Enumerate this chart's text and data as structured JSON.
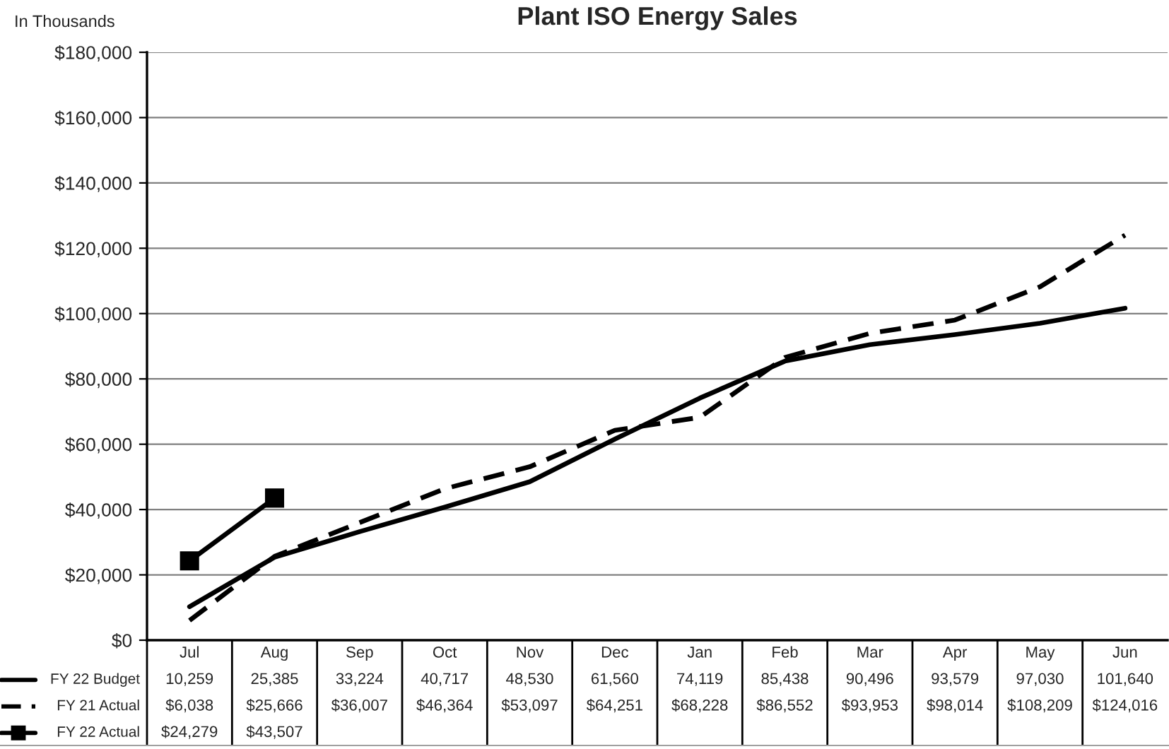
{
  "chart_data": {
    "type": "line",
    "title": "Plant ISO Energy Sales",
    "ylabel": "In Thousands",
    "categories": [
      "Jul",
      "Aug",
      "Sep",
      "Oct",
      "Nov",
      "Dec",
      "Jan",
      "Feb",
      "Mar",
      "Apr",
      "May",
      "Jun"
    ],
    "series": [
      {
        "name": "FY 22 Budget",
        "color": "#000000",
        "line_style": "solid",
        "marker": "none",
        "values": [
          10259,
          25385,
          33224,
          40717,
          48530,
          61560,
          74119,
          85438,
          90496,
          93579,
          97030,
          101640
        ],
        "value_labels": [
          "10,259",
          "25,385",
          "33,224",
          "40,717",
          "48,530",
          "61,560",
          "74,119",
          "85,438",
          "90,496",
          "93,579",
          "97,030",
          "101,640"
        ]
      },
      {
        "name": "FY 21 Actual",
        "color": "#000000",
        "line_style": "dashed",
        "marker": "none",
        "values": [
          6038,
          25666,
          36007,
          46364,
          53097,
          64251,
          68228,
          86552,
          93953,
          98014,
          108209,
          124016
        ],
        "value_labels": [
          "$6,038",
          "$25,666",
          "$36,007",
          "$46,364",
          "$53,097",
          "$64,251",
          "$68,228",
          "$86,552",
          "$93,953",
          "$98,014",
          "$108,209",
          "$124,016"
        ]
      },
      {
        "name": "FY 22 Actual",
        "color": "#000000",
        "line_style": "solid",
        "marker": "square",
        "values": [
          24279,
          43507,
          null,
          null,
          null,
          null,
          null,
          null,
          null,
          null,
          null,
          null
        ],
        "value_labels": [
          "$24,279",
          "$43,507",
          null,
          null,
          null,
          null,
          null,
          null,
          null,
          null,
          null,
          null
        ]
      }
    ],
    "ylim": [
      0,
      180000
    ],
    "yticks": [
      {
        "value": 0,
        "label": "$0"
      },
      {
        "value": 20000,
        "label": "$20,000"
      },
      {
        "value": 40000,
        "label": "$40,000"
      },
      {
        "value": 60000,
        "label": "$60,000"
      },
      {
        "value": 80000,
        "label": "$80,000"
      },
      {
        "value": 100000,
        "label": "$100,000"
      },
      {
        "value": 120000,
        "label": "$120,000"
      },
      {
        "value": 140000,
        "label": "$140,000"
      },
      {
        "value": 160000,
        "label": "$160,000"
      },
      {
        "value": 180000,
        "label": "$180,000"
      }
    ],
    "grid": "y",
    "legend": "bottom"
  }
}
